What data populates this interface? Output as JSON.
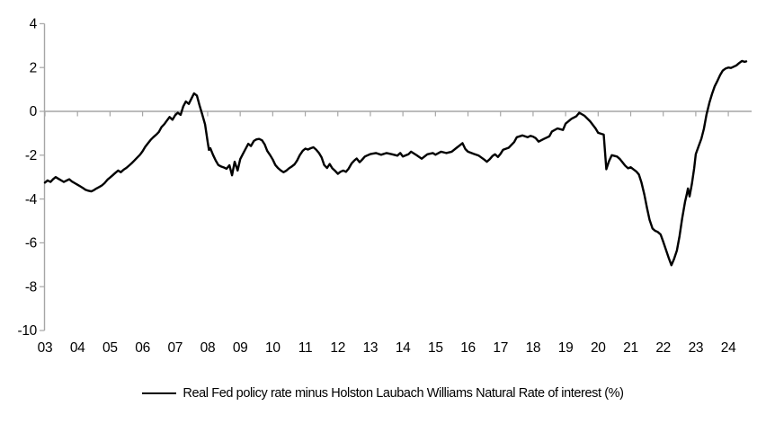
{
  "colors": {
    "line": "#000000",
    "axis": "#a6a6a6",
    "text": "#000000",
    "background": "#ffffff"
  },
  "chart_data": {
    "type": "line",
    "title": "",
    "xlabel": "",
    "ylabel": "",
    "x_domain": [
      2003,
      2024.55
    ],
    "y_domain": [
      -10,
      4
    ],
    "grid": false,
    "zero_axis_line": true,
    "legend_position": "bottom",
    "y_ticks": [
      {
        "value": 4,
        "label": "4"
      },
      {
        "value": 2,
        "label": "2"
      },
      {
        "value": 0,
        "label": "0"
      },
      {
        "value": -2,
        "label": "-2"
      },
      {
        "value": -4,
        "label": "-4"
      },
      {
        "value": -6,
        "label": "-6"
      },
      {
        "value": -8,
        "label": "-8"
      },
      {
        "value": -10,
        "label": "-10"
      }
    ],
    "x_ticks": [
      {
        "year": 2003,
        "label": "03"
      },
      {
        "year": 2004,
        "label": "04"
      },
      {
        "year": 2005,
        "label": "05"
      },
      {
        "year": 2006,
        "label": "06"
      },
      {
        "year": 2007,
        "label": "07"
      },
      {
        "year": 2008,
        "label": "08"
      },
      {
        "year": 2009,
        "label": "09"
      },
      {
        "year": 2010,
        "label": "10"
      },
      {
        "year": 2011,
        "label": "11"
      },
      {
        "year": 2012,
        "label": "12"
      },
      {
        "year": 2013,
        "label": "13"
      },
      {
        "year": 2014,
        "label": "14"
      },
      {
        "year": 2015,
        "label": "15"
      },
      {
        "year": 2016,
        "label": "16"
      },
      {
        "year": 2017,
        "label": "17"
      },
      {
        "year": 2018,
        "label": "18"
      },
      {
        "year": 2019,
        "label": "19"
      },
      {
        "year": 2020,
        "label": "20"
      },
      {
        "year": 2021,
        "label": "21"
      },
      {
        "year": 2022,
        "label": "22"
      },
      {
        "year": 2023,
        "label": "23"
      },
      {
        "year": 2024,
        "label": "24"
      }
    ],
    "series": [
      {
        "name": "Real Fed policy rate minus Holston Laubach Williams Natural Rate of interest (%)",
        "color": "#000000",
        "points": [
          [
            2003.0,
            -3.25
          ],
          [
            2003.08,
            -3.15
          ],
          [
            2003.17,
            -3.22
          ],
          [
            2003.25,
            -3.1
          ],
          [
            2003.33,
            -3.0
          ],
          [
            2003.42,
            -3.08
          ],
          [
            2003.5,
            -3.15
          ],
          [
            2003.58,
            -3.22
          ],
          [
            2003.67,
            -3.15
          ],
          [
            2003.75,
            -3.1
          ],
          [
            2003.83,
            -3.2
          ],
          [
            2003.92,
            -3.28
          ],
          [
            2004.0,
            -3.35
          ],
          [
            2004.08,
            -3.42
          ],
          [
            2004.17,
            -3.5
          ],
          [
            2004.25,
            -3.58
          ],
          [
            2004.33,
            -3.62
          ],
          [
            2004.42,
            -3.65
          ],
          [
            2004.5,
            -3.6
          ],
          [
            2004.58,
            -3.52
          ],
          [
            2004.67,
            -3.45
          ],
          [
            2004.75,
            -3.38
          ],
          [
            2004.83,
            -3.28
          ],
          [
            2004.92,
            -3.12
          ],
          [
            2005.0,
            -3.02
          ],
          [
            2005.08,
            -2.92
          ],
          [
            2005.17,
            -2.8
          ],
          [
            2005.25,
            -2.7
          ],
          [
            2005.33,
            -2.78
          ],
          [
            2005.42,
            -2.66
          ],
          [
            2005.5,
            -2.58
          ],
          [
            2005.58,
            -2.48
          ],
          [
            2005.67,
            -2.36
          ],
          [
            2005.75,
            -2.24
          ],
          [
            2005.83,
            -2.12
          ],
          [
            2005.92,
            -1.98
          ],
          [
            2006.0,
            -1.82
          ],
          [
            2006.08,
            -1.62
          ],
          [
            2006.17,
            -1.45
          ],
          [
            2006.25,
            -1.3
          ],
          [
            2006.33,
            -1.18
          ],
          [
            2006.42,
            -1.06
          ],
          [
            2006.5,
            -0.94
          ],
          [
            2006.58,
            -0.72
          ],
          [
            2006.67,
            -0.58
          ],
          [
            2006.75,
            -0.42
          ],
          [
            2006.83,
            -0.26
          ],
          [
            2006.92,
            -0.38
          ],
          [
            2007.0,
            -0.18
          ],
          [
            2007.08,
            -0.06
          ],
          [
            2007.17,
            -0.16
          ],
          [
            2007.25,
            0.22
          ],
          [
            2007.33,
            0.45
          ],
          [
            2007.42,
            0.34
          ],
          [
            2007.5,
            0.58
          ],
          [
            2007.58,
            0.82
          ],
          [
            2007.67,
            0.72
          ],
          [
            2007.75,
            0.28
          ],
          [
            2007.83,
            -0.12
          ],
          [
            2007.92,
            -0.6
          ],
          [
            2008.0,
            -1.4
          ],
          [
            2008.04,
            -1.76
          ],
          [
            2008.08,
            -1.68
          ],
          [
            2008.17,
            -2.0
          ],
          [
            2008.25,
            -2.25
          ],
          [
            2008.33,
            -2.45
          ],
          [
            2008.42,
            -2.52
          ],
          [
            2008.5,
            -2.56
          ],
          [
            2008.58,
            -2.62
          ],
          [
            2008.67,
            -2.46
          ],
          [
            2008.75,
            -2.92
          ],
          [
            2008.83,
            -2.3
          ],
          [
            2008.92,
            -2.7
          ],
          [
            2009.0,
            -2.18
          ],
          [
            2009.08,
            -1.95
          ],
          [
            2009.17,
            -1.7
          ],
          [
            2009.25,
            -1.48
          ],
          [
            2009.33,
            -1.58
          ],
          [
            2009.42,
            -1.35
          ],
          [
            2009.5,
            -1.28
          ],
          [
            2009.58,
            -1.26
          ],
          [
            2009.67,
            -1.32
          ],
          [
            2009.75,
            -1.5
          ],
          [
            2009.83,
            -1.8
          ],
          [
            2009.92,
            -2.0
          ],
          [
            2010.0,
            -2.2
          ],
          [
            2010.08,
            -2.45
          ],
          [
            2010.17,
            -2.6
          ],
          [
            2010.25,
            -2.7
          ],
          [
            2010.33,
            -2.78
          ],
          [
            2010.42,
            -2.7
          ],
          [
            2010.5,
            -2.6
          ],
          [
            2010.58,
            -2.52
          ],
          [
            2010.67,
            -2.42
          ],
          [
            2010.75,
            -2.24
          ],
          [
            2010.83,
            -2.0
          ],
          [
            2010.92,
            -1.8
          ],
          [
            2011.0,
            -1.7
          ],
          [
            2011.08,
            -1.74
          ],
          [
            2011.17,
            -1.68
          ],
          [
            2011.25,
            -1.64
          ],
          [
            2011.33,
            -1.74
          ],
          [
            2011.42,
            -1.9
          ],
          [
            2011.5,
            -2.1
          ],
          [
            2011.58,
            -2.45
          ],
          [
            2011.67,
            -2.58
          ],
          [
            2011.75,
            -2.4
          ],
          [
            2011.83,
            -2.6
          ],
          [
            2011.92,
            -2.72
          ],
          [
            2012.0,
            -2.85
          ],
          [
            2012.08,
            -2.76
          ],
          [
            2012.17,
            -2.7
          ],
          [
            2012.25,
            -2.76
          ],
          [
            2012.33,
            -2.62
          ],
          [
            2012.42,
            -2.38
          ],
          [
            2012.5,
            -2.25
          ],
          [
            2012.58,
            -2.15
          ],
          [
            2012.67,
            -2.32
          ],
          [
            2012.75,
            -2.2
          ],
          [
            2012.83,
            -2.06
          ],
          [
            2012.92,
            -2.0
          ],
          [
            2013.0,
            -1.95
          ],
          [
            2013.17,
            -1.9
          ],
          [
            2013.33,
            -1.98
          ],
          [
            2013.5,
            -1.9
          ],
          [
            2013.67,
            -1.96
          ],
          [
            2013.83,
            -2.02
          ],
          [
            2013.92,
            -1.9
          ],
          [
            2014.0,
            -2.06
          ],
          [
            2014.17,
            -1.96
          ],
          [
            2014.25,
            -1.84
          ],
          [
            2014.42,
            -2.0
          ],
          [
            2014.58,
            -2.16
          ],
          [
            2014.75,
            -1.96
          ],
          [
            2014.92,
            -1.9
          ],
          [
            2015.0,
            -1.98
          ],
          [
            2015.17,
            -1.84
          ],
          [
            2015.33,
            -1.9
          ],
          [
            2015.5,
            -1.84
          ],
          [
            2015.67,
            -1.64
          ],
          [
            2015.83,
            -1.45
          ],
          [
            2015.92,
            -1.72
          ],
          [
            2016.0,
            -1.84
          ],
          [
            2016.17,
            -1.94
          ],
          [
            2016.33,
            -2.02
          ],
          [
            2016.5,
            -2.2
          ],
          [
            2016.58,
            -2.3
          ],
          [
            2016.67,
            -2.18
          ],
          [
            2016.75,
            -2.04
          ],
          [
            2016.83,
            -1.96
          ],
          [
            2016.92,
            -2.08
          ],
          [
            2017.0,
            -1.94
          ],
          [
            2017.08,
            -1.75
          ],
          [
            2017.25,
            -1.66
          ],
          [
            2017.42,
            -1.4
          ],
          [
            2017.5,
            -1.18
          ],
          [
            2017.67,
            -1.1
          ],
          [
            2017.83,
            -1.18
          ],
          [
            2017.92,
            -1.12
          ],
          [
            2018.0,
            -1.15
          ],
          [
            2018.08,
            -1.22
          ],
          [
            2018.17,
            -1.38
          ],
          [
            2018.33,
            -1.26
          ],
          [
            2018.5,
            -1.14
          ],
          [
            2018.58,
            -0.92
          ],
          [
            2018.75,
            -0.78
          ],
          [
            2018.92,
            -0.85
          ],
          [
            2019.0,
            -0.56
          ],
          [
            2019.17,
            -0.35
          ],
          [
            2019.33,
            -0.22
          ],
          [
            2019.42,
            -0.06
          ],
          [
            2019.58,
            -0.2
          ],
          [
            2019.75,
            -0.45
          ],
          [
            2019.92,
            -0.78
          ],
          [
            2020.0,
            -0.98
          ],
          [
            2020.17,
            -1.06
          ],
          [
            2020.25,
            -2.64
          ],
          [
            2020.33,
            -2.28
          ],
          [
            2020.42,
            -2.0
          ],
          [
            2020.58,
            -2.06
          ],
          [
            2020.67,
            -2.18
          ],
          [
            2020.83,
            -2.48
          ],
          [
            2020.92,
            -2.6
          ],
          [
            2021.0,
            -2.55
          ],
          [
            2021.08,
            -2.64
          ],
          [
            2021.17,
            -2.74
          ],
          [
            2021.25,
            -2.88
          ],
          [
            2021.33,
            -3.25
          ],
          [
            2021.42,
            -3.8
          ],
          [
            2021.5,
            -4.4
          ],
          [
            2021.58,
            -4.95
          ],
          [
            2021.67,
            -5.35
          ],
          [
            2021.75,
            -5.45
          ],
          [
            2021.83,
            -5.5
          ],
          [
            2021.92,
            -5.62
          ],
          [
            2022.0,
            -5.95
          ],
          [
            2022.08,
            -6.3
          ],
          [
            2022.17,
            -6.7
          ],
          [
            2022.25,
            -7.02
          ],
          [
            2022.33,
            -6.75
          ],
          [
            2022.42,
            -6.35
          ],
          [
            2022.5,
            -5.7
          ],
          [
            2022.58,
            -4.9
          ],
          [
            2022.67,
            -4.12
          ],
          [
            2022.72,
            -3.8
          ],
          [
            2022.76,
            -3.52
          ],
          [
            2022.81,
            -3.88
          ],
          [
            2022.88,
            -3.3
          ],
          [
            2022.95,
            -2.6
          ],
          [
            2023.0,
            -1.95
          ],
          [
            2023.08,
            -1.62
          ],
          [
            2023.17,
            -1.25
          ],
          [
            2023.25,
            -0.8
          ],
          [
            2023.33,
            -0.15
          ],
          [
            2023.42,
            0.4
          ],
          [
            2023.5,
            0.8
          ],
          [
            2023.58,
            1.14
          ],
          [
            2023.67,
            1.4
          ],
          [
            2023.75,
            1.66
          ],
          [
            2023.83,
            1.86
          ],
          [
            2023.92,
            1.96
          ],
          [
            2024.0,
            2.0
          ],
          [
            2024.08,
            1.98
          ],
          [
            2024.17,
            2.04
          ],
          [
            2024.25,
            2.1
          ],
          [
            2024.33,
            2.2
          ],
          [
            2024.42,
            2.3
          ],
          [
            2024.5,
            2.26
          ],
          [
            2024.55,
            2.28
          ]
        ]
      }
    ]
  },
  "legend": {
    "label": "Real Fed policy rate minus Holston Laubach Williams Natural Rate of interest (%)"
  }
}
